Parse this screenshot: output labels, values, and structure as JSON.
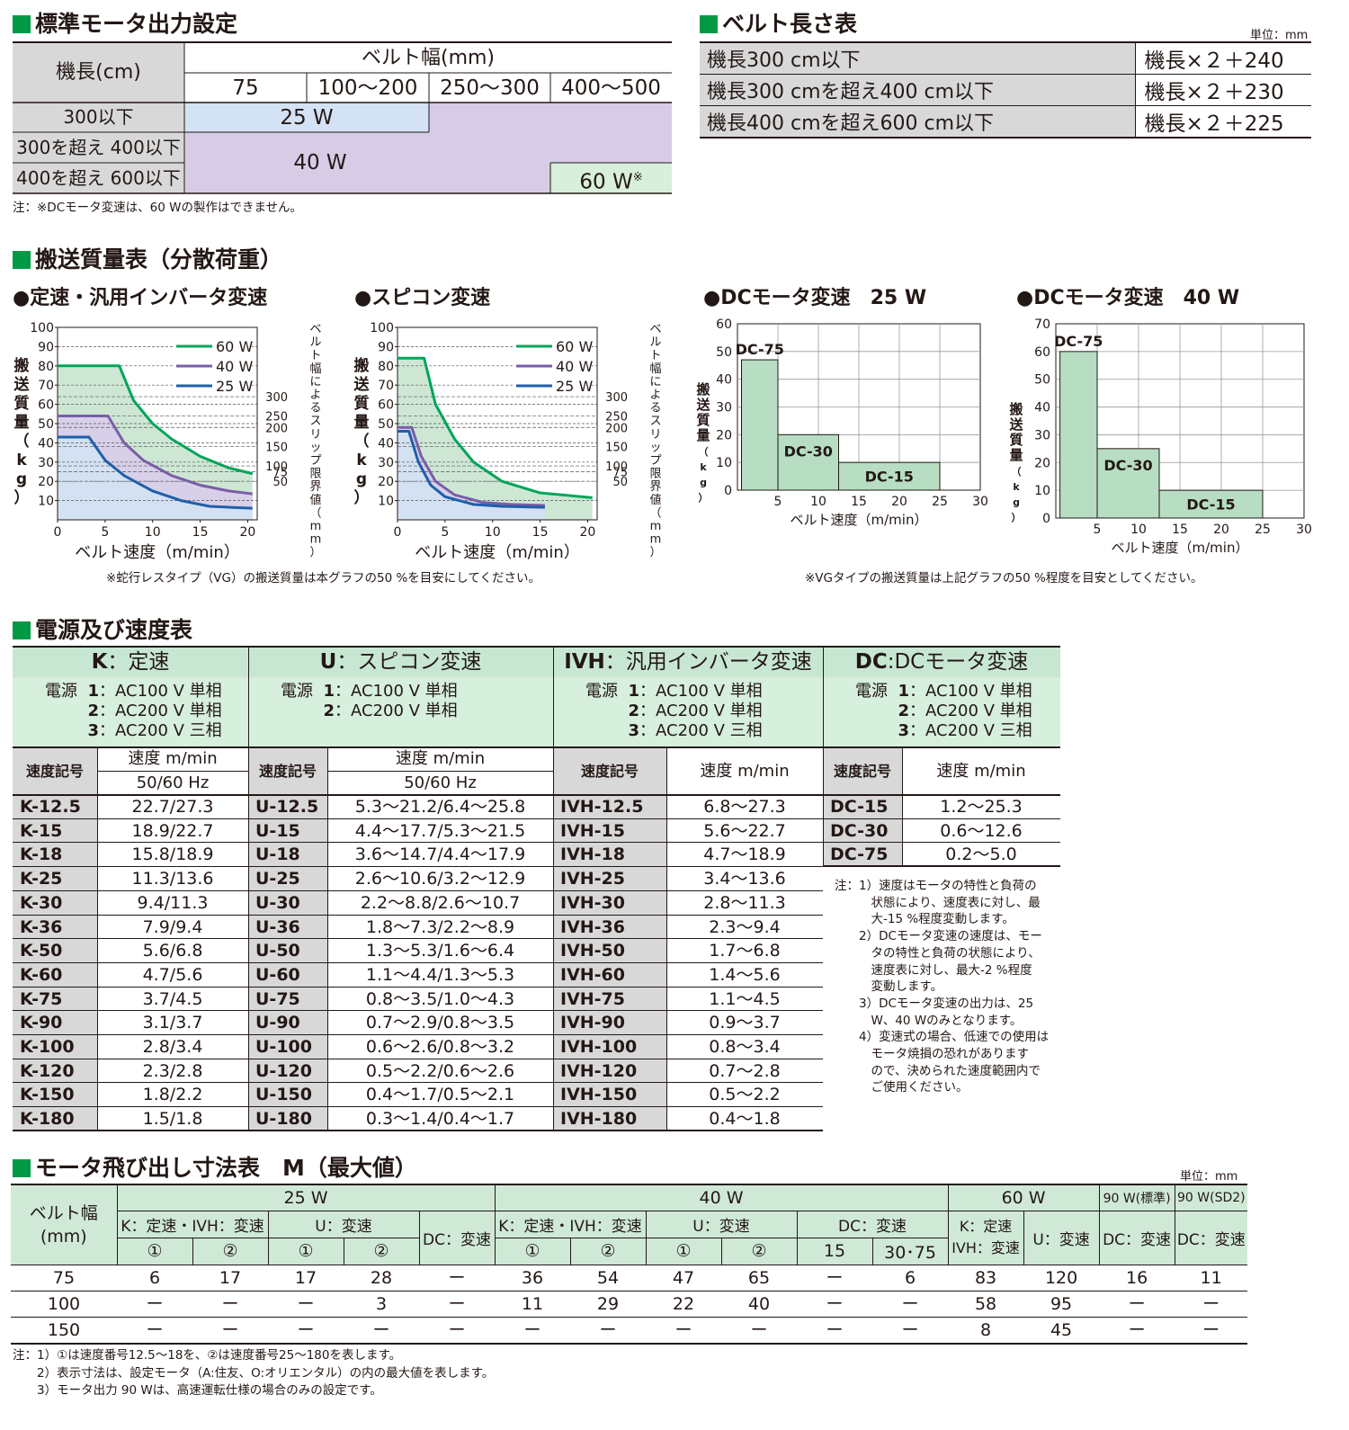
{
  "motor_output": {
    "title": "標準モータ出力設定",
    "h_length": "機長(cm)",
    "h_width": "ベルト幅(mm)",
    "widths": [
      "75",
      "100〜200",
      "250〜300",
      "400〜500"
    ],
    "rows": [
      "300以下",
      "300を超え 400以下",
      "400を超え 600以下"
    ],
    "v25": "25 W",
    "v40": "40 W",
    "v60": "60 W",
    "v60_mark": "※",
    "note": "注：※DCモータ変速は、60 Wの製作はできません。"
  },
  "belt_length": {
    "title": "ベルト長さ表",
    "unit": "単位：mm",
    "rows": [
      {
        "k": "機長300 cm以下",
        "v": "機長×２＋240"
      },
      {
        "k": "機長300 cmを超え400 cm以下",
        "v": "機長×２＋230"
      },
      {
        "k": "機長400 cmを超え600 cm以下",
        "v": "機長×２＋225"
      }
    ]
  },
  "transport": {
    "title": "搬送質量表（分散荷重）",
    "note_left": "※蛇行レスタイプ（VG）の搬送質量は本グラフの50 %を目安にしてください。",
    "note_right": "※VGタイプの搬送質量は上記グラフの50 %程度を目安としてください。"
  },
  "chart_data": [
    {
      "type": "line",
      "title": "●定速・汎用インバータ変速",
      "xlabel": "ベルト速度（m/min）",
      "ylabel": "搬送質量（kg）",
      "y2label": "ベルト幅によるスリップ限界値（mm）",
      "xlim": [
        0,
        21
      ],
      "ylim": [
        0,
        100
      ],
      "x_ticks": [
        "0",
        "5",
        "10",
        "15",
        "20"
      ],
      "y_ticks": [
        "10",
        "20",
        "30",
        "40",
        "50",
        "60",
        "70",
        "80",
        "90",
        "100"
      ],
      "y2_ticks": [
        "300",
        "250",
        "200",
        "150",
        "100",
        "75",
        "50"
      ],
      "y2_positions": [
        64,
        54,
        48,
        38,
        28,
        25,
        20
      ],
      "legend": "top-right",
      "series": [
        {
          "name": "60 W",
          "color": "#00a55a",
          "x": [
            0,
            6.5,
            8,
            10,
            12,
            15,
            18,
            20.5
          ],
          "y": [
            80,
            80,
            62,
            50,
            42,
            33,
            27,
            24
          ]
        },
        {
          "name": "40 W",
          "color": "#7a5ea8",
          "x": [
            0,
            5.3,
            7,
            9,
            12,
            15,
            18,
            20.5
          ],
          "y": [
            54,
            54,
            40,
            31,
            23,
            18,
            15,
            13.5
          ]
        },
        {
          "name": "25 W",
          "color": "#1f5faa",
          "x": [
            0,
            3.3,
            5,
            7,
            10,
            13,
            16,
            20.5
          ],
          "y": [
            43,
            43,
            31,
            23,
            15,
            10,
            7,
            6
          ]
        }
      ]
    },
    {
      "type": "line",
      "title": "●スピコン変速",
      "xlabel": "ベルト速度（m/min）",
      "ylabel": "搬送質量（kg）",
      "y2label": "ベルト幅によるスリップ限界値（mm）",
      "xlim": [
        0,
        21
      ],
      "ylim": [
        0,
        100
      ],
      "x_ticks": [
        "0",
        "5",
        "10",
        "15",
        "20"
      ],
      "y_ticks": [
        "10",
        "20",
        "30",
        "40",
        "50",
        "60",
        "70",
        "80",
        "90",
        "100"
      ],
      "y2_ticks": [
        "300",
        "250",
        "200",
        "150",
        "100",
        "75",
        "50"
      ],
      "y2_positions": [
        64,
        54,
        48,
        38,
        28,
        25,
        20
      ],
      "legend": "top-right",
      "series": [
        {
          "name": "60 W",
          "color": "#00a55a",
          "x": [
            0,
            2.8,
            4,
            6,
            8,
            11,
            15,
            20.5
          ],
          "y": [
            84,
            84,
            60,
            42,
            30,
            20,
            14,
            11.5
          ]
        },
        {
          "name": "40 W",
          "color": "#7a5ea8",
          "x": [
            0,
            1.5,
            2.5,
            4,
            6,
            9,
            12,
            15.5
          ],
          "y": [
            48,
            48,
            33,
            20,
            13,
            9,
            8,
            7.5
          ]
        },
        {
          "name": "25 W",
          "color": "#1f5faa",
          "x": [
            0,
            1.2,
            2.2,
            3.5,
            5,
            8,
            11,
            15.5
          ],
          "y": [
            46,
            46,
            30,
            18,
            12,
            8,
            7,
            6.5
          ]
        }
      ]
    },
    {
      "type": "bar",
      "title": "●DCモータ変速　25 W",
      "xlabel": "ベルト速度（m/min）",
      "ylabel": "搬送質量（kg）",
      "xlim": [
        0,
        30
      ],
      "ylim": [
        0,
        60
      ],
      "x_ticks": [
        "5",
        "10",
        "15",
        "20",
        "25",
        "30"
      ],
      "y_ticks": [
        "0",
        "10",
        "20",
        "30",
        "40",
        "50",
        "60"
      ],
      "bars": [
        {
          "name": "DC-75",
          "x0": 0.5,
          "x1": 5,
          "value": 47
        },
        {
          "name": "DC-30",
          "x0": 5,
          "x1": 12.5,
          "value": 20
        },
        {
          "name": "DC-15",
          "x0": 12.5,
          "x1": 25,
          "value": 10
        }
      ]
    },
    {
      "type": "bar",
      "title": "●DCモータ変速　40 W",
      "xlabel": "ベルト速度（m/min）",
      "ylabel": "搬送質量（kg）",
      "xlim": [
        0,
        30
      ],
      "ylim": [
        0,
        70
      ],
      "x_ticks": [
        "5",
        "10",
        "15",
        "20",
        "25",
        "30"
      ],
      "y_ticks": [
        "0",
        "10",
        "20",
        "30",
        "40",
        "50",
        "60",
        "70"
      ],
      "bars": [
        {
          "name": "DC-75",
          "x0": 0.5,
          "x1": 5,
          "value": 60
        },
        {
          "name": "DC-30",
          "x0": 5,
          "x1": 12.5,
          "value": 25
        },
        {
          "name": "DC-15",
          "x0": 12.5,
          "x1": 25,
          "value": 10
        }
      ]
    }
  ],
  "power_speed": {
    "title": "電源及び速度表",
    "K": {
      "code": "K",
      "name": "：定速",
      "power": [
        {
          "pre": "電源",
          "num": "1",
          "txt": "：AC100 V 単相"
        },
        {
          "pre": "",
          "num": "2",
          "txt": "：AC200 V 単相"
        },
        {
          "pre": "",
          "num": "3",
          "txt": "：AC200 V 三相"
        }
      ],
      "h_code": "速度記号",
      "h_speed": "速度 m/min",
      "h_hz": "50/60 Hz",
      "rows": [
        [
          "K-12.5",
          "22.7/27.3"
        ],
        [
          "K-15",
          "18.9/22.7"
        ],
        [
          "K-18",
          "15.8/18.9"
        ],
        [
          "K-25",
          "11.3/13.6"
        ],
        [
          "K-30",
          "9.4/11.3"
        ],
        [
          "K-36",
          "7.9/9.4"
        ],
        [
          "K-50",
          "5.6/6.8"
        ],
        [
          "K-60",
          "4.7/5.6"
        ],
        [
          "K-75",
          "3.7/4.5"
        ],
        [
          "K-90",
          "3.1/3.7"
        ],
        [
          "K-100",
          "2.8/3.4"
        ],
        [
          "K-120",
          "2.3/2.8"
        ],
        [
          "K-150",
          "1.8/2.2"
        ],
        [
          "K-180",
          "1.5/1.8"
        ]
      ]
    },
    "U": {
      "code": "U",
      "name": "：スピコン変速",
      "power": [
        {
          "pre": "電源",
          "num": "1",
          "txt": "：AC100 V 単相"
        },
        {
          "pre": "",
          "num": "2",
          "txt": "：AC200 V 単相"
        }
      ],
      "h_code": "速度記号",
      "h_speed": "速度 m/min",
      "h_hz": "50/60 Hz",
      "rows": [
        [
          "U-12.5",
          "5.3〜21.2/6.4〜25.8"
        ],
        [
          "U-15",
          "4.4〜17.7/5.3〜21.5"
        ],
        [
          "U-18",
          "3.6〜14.7/4.4〜17.9"
        ],
        [
          "U-25",
          "2.6〜10.6/3.2〜12.9"
        ],
        [
          "U-30",
          "2.2〜8.8/2.6〜10.7"
        ],
        [
          "U-36",
          "1.8〜7.3/2.2〜8.9"
        ],
        [
          "U-50",
          "1.3〜5.3/1.6〜6.4"
        ],
        [
          "U-60",
          "1.1〜4.4/1.3〜5.3"
        ],
        [
          "U-75",
          "0.8〜3.5/1.0〜4.3"
        ],
        [
          "U-90",
          "0.7〜2.9/0.8〜3.5"
        ],
        [
          "U-100",
          "0.6〜2.6/0.8〜3.2"
        ],
        [
          "U-120",
          "0.5〜2.2/0.6〜2.6"
        ],
        [
          "U-150",
          "0.4〜1.7/0.5〜2.1"
        ],
        [
          "U-180",
          "0.3〜1.4/0.4〜1.7"
        ]
      ]
    },
    "IVH": {
      "code": "IVH",
      "name": "：汎用インバータ変速",
      "power": [
        {
          "pre": "電源",
          "num": "1",
          "txt": "：AC100 V 単相"
        },
        {
          "pre": "",
          "num": "2",
          "txt": "：AC200 V 単相"
        },
        {
          "pre": "",
          "num": "3",
          "txt": "：AC200 V 三相"
        }
      ],
      "h_code": "速度記号",
      "h_speed": "速度 m/min",
      "rows": [
        [
          "IVH-12.5",
          "6.8〜27.3"
        ],
        [
          "IVH-15",
          "5.6〜22.7"
        ],
        [
          "IVH-18",
          "4.7〜18.9"
        ],
        [
          "IVH-25",
          "3.4〜13.6"
        ],
        [
          "IVH-30",
          "2.8〜11.3"
        ],
        [
          "IVH-36",
          "2.3〜9.4"
        ],
        [
          "IVH-50",
          "1.7〜6.8"
        ],
        [
          "IVH-60",
          "1.4〜5.6"
        ],
        [
          "IVH-75",
          "1.1〜4.5"
        ],
        [
          "IVH-90",
          "0.9〜3.7"
        ],
        [
          "IVH-100",
          "0.8〜3.4"
        ],
        [
          "IVH-120",
          "0.7〜2.8"
        ],
        [
          "IVH-150",
          "0.5〜2.2"
        ],
        [
          "IVH-180",
          "0.4〜1.8"
        ]
      ]
    },
    "DC": {
      "code": "DC",
      "name": ":DCモータ変速",
      "power": [
        {
          "pre": "電源",
          "num": "1",
          "txt": "：AC100 V 単相"
        },
        {
          "pre": "",
          "num": "2",
          "txt": "：AC200 V 単相"
        },
        {
          "pre": "",
          "num": "3",
          "txt": "：AC200 V 三相"
        }
      ],
      "h_code": "速度記号",
      "h_speed": "速度 m/min",
      "rows": [
        [
          "DC-15",
          "1.2〜25.3"
        ],
        [
          "DC-30",
          "0.6〜12.6"
        ],
        [
          "DC-75",
          "0.2〜5.0"
        ]
      ]
    },
    "notes": [
      "注：1）速度はモータの特性と負荷の",
      "　　　状態により、速度表に対し、最",
      "　　　大-15 %程度変動します。",
      "　　2）DCモータ変速の速度は、モー",
      "　　　タの特性と負荷の状態により、",
      "　　　速度表に対し、最大-2 %程度",
      "　　　変動します。",
      "　　3）DCモータ変速の出力は、25",
      "　　　W、40 Wのみとなります。",
      "　　4）変速式の場合、低速での使用は",
      "　　　モータ焼損の恐れがあります",
      "　　　ので、決められた速度範囲内で",
      "　　　ご使用ください。"
    ]
  },
  "motor_protrusion": {
    "title": "モータ飛び出し寸法表　M（最大値）",
    "unit": "単位：mm",
    "h_width": "ベルト幅",
    "h_width_unit": "(mm)",
    "groups": [
      "25 W",
      "40 W",
      "60 W",
      "90 W(標準)",
      "90 W(SD2)"
    ],
    "sub_k_ivh": "K：定速・IVH：変速",
    "sub_u": "U：変速",
    "sub_dc": "DC：変速",
    "sub_k60a": "K：定速",
    "sub_k60b": "IVH：変速",
    "n1": "①",
    "n2": "②",
    "s15": "15",
    "s3075": "30･75",
    "rows": [
      [
        "75",
        "6",
        "17",
        "17",
        "28",
        "ー",
        "36",
        "54",
        "47",
        "65",
        "ー",
        "6",
        "83",
        "120",
        "16",
        "11"
      ],
      [
        "100",
        "ー",
        "ー",
        "ー",
        "3",
        "ー",
        "11",
        "29",
        "22",
        "40",
        "ー",
        "ー",
        "58",
        "95",
        "ー",
        "ー"
      ],
      [
        "150",
        "ー",
        "ー",
        "ー",
        "ー",
        "ー",
        "ー",
        "ー",
        "ー",
        "ー",
        "ー",
        "ー",
        "8",
        "45",
        "ー",
        "ー"
      ]
    ],
    "notes": [
      "注：1）①は速度番号12.5〜18を、②は速度番号25〜180を表します。",
      "　　2）表示寸法は、設定モータ（A:住友、O:オリエンタル）の内の最大値を表します。",
      "　　3）モータ出力 90 Wは、高速運転仕様の場合のみの設定です。"
    ]
  }
}
